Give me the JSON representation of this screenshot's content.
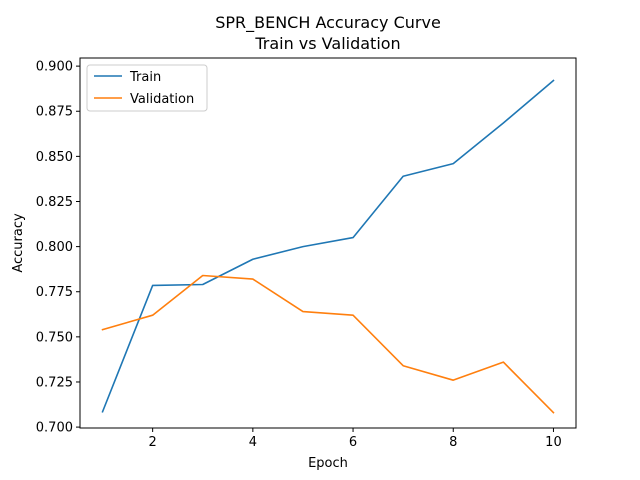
{
  "chart_data": {
    "type": "line",
    "title": "SPR_BENCH Accuracy Curve",
    "subtitle": "Train vs Validation",
    "xlabel": "Epoch",
    "ylabel": "Accuracy",
    "x": [
      1,
      2,
      3,
      4,
      5,
      6,
      7,
      8,
      9,
      10
    ],
    "xlim": [
      0.55,
      10.45
    ],
    "ylim": [
      0.6995,
      0.9045
    ],
    "xticks": [
      2,
      4,
      6,
      8,
      10
    ],
    "xtick_labels": [
      "2",
      "4",
      "6",
      "8",
      "10"
    ],
    "yticks": [
      0.7,
      0.725,
      0.75,
      0.775,
      0.8,
      0.825,
      0.85,
      0.875,
      0.9
    ],
    "ytick_labels": [
      "0.700",
      "0.725",
      "0.750",
      "0.775",
      "0.800",
      "0.825",
      "0.850",
      "0.875",
      "0.900"
    ],
    "grid": false,
    "legend_position": "top-left",
    "series": [
      {
        "name": "Train",
        "color": "#1f77b4",
        "values": [
          0.7085,
          0.7785,
          0.779,
          0.793,
          0.8,
          0.805,
          0.839,
          0.846,
          0.8685,
          0.892
        ]
      },
      {
        "name": "Validation",
        "color": "#ff7f0e",
        "values": [
          0.754,
          0.762,
          0.784,
          0.782,
          0.764,
          0.762,
          0.734,
          0.726,
          0.736,
          0.708
        ]
      }
    ]
  }
}
